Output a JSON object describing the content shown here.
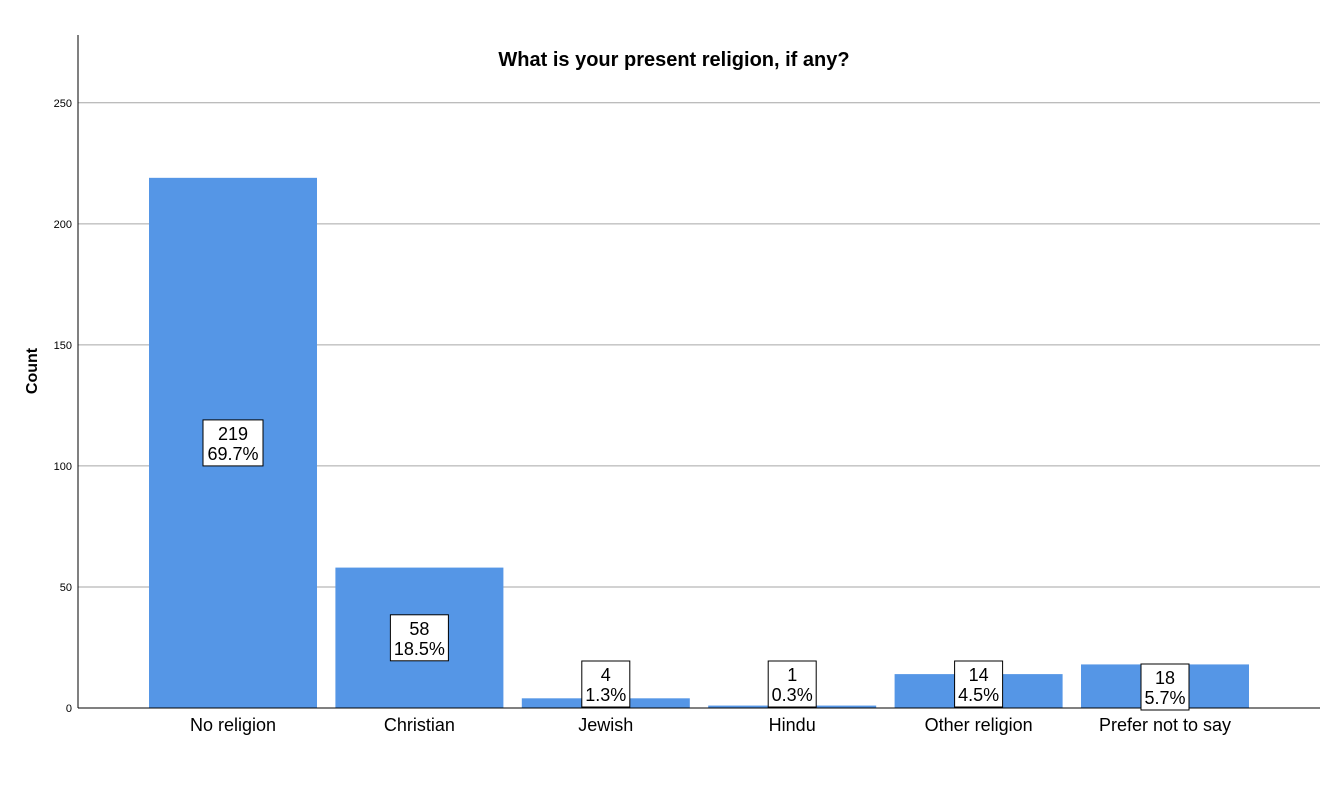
{
  "chart_data": {
    "type": "bar",
    "title": "What is your present religion, if any?",
    "xlabel": "",
    "ylabel": "Count",
    "categories": [
      "No religion",
      "Christian",
      "Jewish",
      "Hindu",
      "Other religion",
      "Prefer not to say"
    ],
    "values": [
      219,
      58,
      4,
      1,
      14,
      18
    ],
    "count_labels": [
      "219",
      "58",
      "4",
      "1",
      "14",
      "18"
    ],
    "percent_labels": [
      "69.7%",
      "18.5%",
      "1.3%",
      "0.3%",
      "4.5%",
      "5.7%"
    ],
    "ylim": [
      0,
      278
    ],
    "yticks": [
      "0",
      "50",
      "100",
      "150",
      "200",
      "250"
    ],
    "grid": true,
    "legend": "none",
    "bar_color": "#5596e6"
  }
}
